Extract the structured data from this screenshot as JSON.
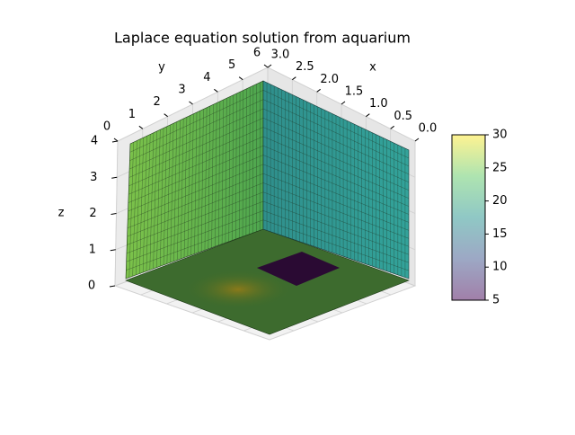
{
  "chart_data": {
    "type": "surface3d",
    "title": "Laplace equation solution from aquarium",
    "xlabel": "x",
    "ylabel": "y",
    "zlabel": "z",
    "xlim": [
      0,
      3
    ],
    "xticks": [
      {
        "value": 0,
        "label": "0.0"
      },
      {
        "value": 0.5,
        "label": "0.5"
      },
      {
        "value": 1,
        "label": "1.0"
      },
      {
        "value": 1.5,
        "label": "1.5"
      },
      {
        "value": 2,
        "label": "2.0"
      },
      {
        "value": 2.5,
        "label": "2.5"
      },
      {
        "value": 3,
        "label": "3.0"
      }
    ],
    "ylim": [
      0,
      6
    ],
    "yticks": [
      0,
      1,
      2,
      3,
      4,
      5,
      6
    ],
    "zlim": [
      0,
      4
    ],
    "zticks": [
      0,
      1,
      2,
      3,
      4
    ],
    "colorbar": {
      "lim": [
        5,
        30
      ],
      "ticks": [
        5,
        10,
        15,
        20,
        25,
        30
      ],
      "colormap": "viridis"
    }
  }
}
